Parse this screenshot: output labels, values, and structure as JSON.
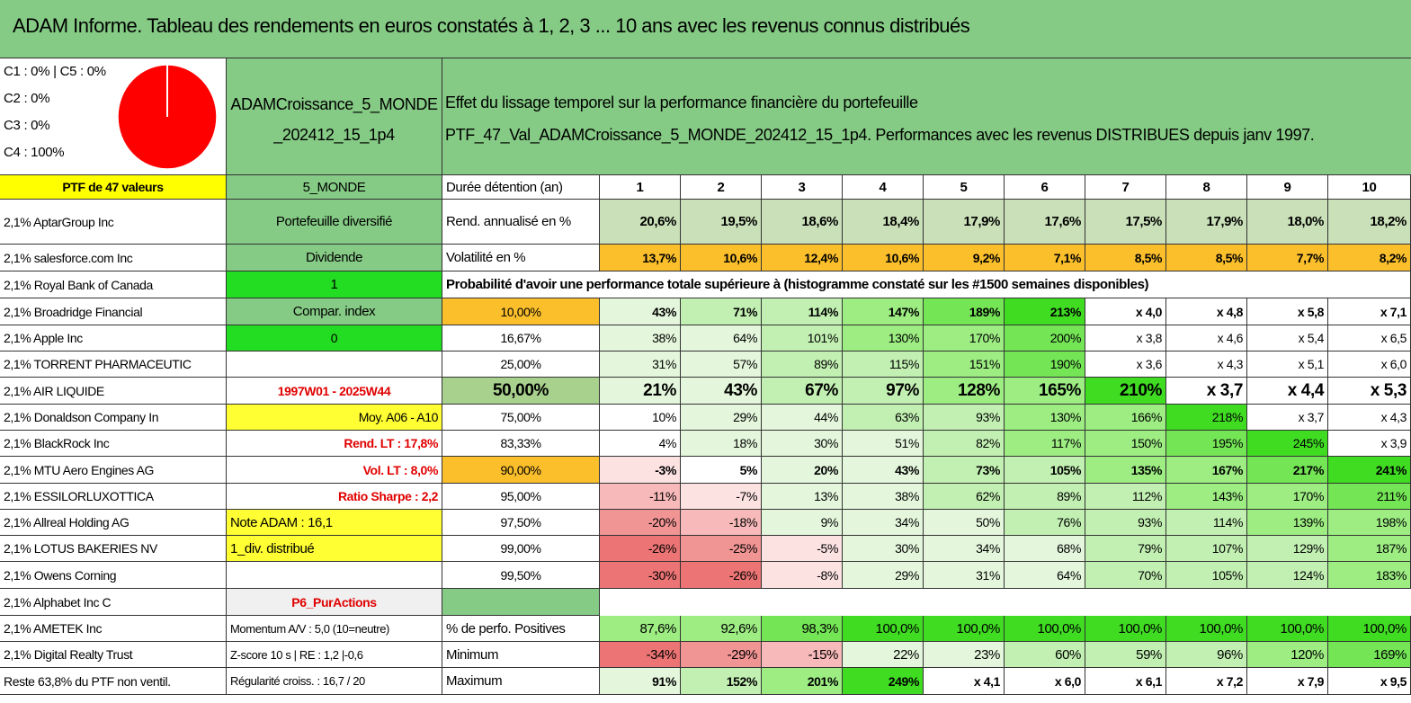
{
  "title": "ADAM Informe. Tableau des rendements en euros constatés à 1, 2, 3 ... 10 ans avec les revenus connus distribués",
  "header": {
    "allocation": [
      "C1 : 0% | C5 : 0%",
      "C2 : 0%",
      "C3 : 0%",
      "C4 : 100%"
    ],
    "portfolio_name": "ADAMCroissance_5_MONDE_202412_15_1p4",
    "description": [
      "Effet du lissage temporel sur la performance financière du portefeuille",
      "PTF_47_Val_ADAMCroissance_5_MONDE_202412_15_1p4. Performances avec les revenus DISTRIBUES depuis janv 1997."
    ]
  },
  "pie": {
    "type": "pie",
    "categories": [
      "C1",
      "C2",
      "C3",
      "C4",
      "C5"
    ],
    "values": [
      0,
      0,
      0,
      100,
      0
    ]
  },
  "table": {
    "rows": [
      [
        "PTF de 47 valeurs",
        "5_MONDE",
        "Durée détention (an)",
        1,
        2,
        3,
        4,
        5,
        6,
        7,
        8,
        9,
        10
      ],
      [
        "2,1% AptarGroup Inc",
        "Portefeuille diversifié",
        "Rend. annualisé en %",
        "20,6%",
        "19,5%",
        "18,6%",
        "18,4%",
        "17,9%",
        "17,6%",
        "17,5%",
        "17,9%",
        "18,0%",
        "18,2%"
      ],
      [
        "2,1% salesforce.com Inc",
        "Dividende",
        "Volatilité en %",
        "13,7%",
        "10,6%",
        "12,4%",
        "10,6%",
        "9,2%",
        "7,1%",
        "8,5%",
        "8,5%",
        "7,7%",
        "8,2%"
      ],
      [
        "2,1% Royal Bank of Canada",
        "1",
        "Probabilité d'avoir une performance totale supérieure à (histogramme constaté sur les #1500 semaines disponibles)"
      ],
      [
        "2,1% Broadridge Financial",
        "Compar. index",
        "10,00%",
        "43%",
        "71%",
        "114%",
        "147%",
        "189%",
        "213%",
        "x 4,0",
        "x 4,8",
        "x 5,8",
        "x 7,1"
      ],
      [
        "2,1% Apple Inc",
        "0",
        "16,67%",
        "38%",
        "64%",
        "101%",
        "130%",
        "170%",
        "200%",
        "x 3,8",
        "x 4,6",
        "x 5,4",
        "x 6,5"
      ],
      [
        "2,1% TORRENT PHARMACEUTIC",
        null,
        "25,00%",
        "31%",
        "57%",
        "89%",
        "115%",
        "151%",
        "190%",
        "x 3,6",
        "x 4,3",
        "x 5,1",
        "x 6,0"
      ],
      [
        "2,1% AIR LIQUIDE",
        "1997W01 - 2025W44",
        "50,00%",
        "21%",
        "43%",
        "67%",
        "97%",
        "128%",
        "165%",
        "210%",
        "x 3,7",
        "x 4,4",
        "x 5,3"
      ],
      [
        "2,1% Donaldson Company In",
        "Moy. A06 - A10",
        "75,00%",
        "10%",
        "29%",
        "44%",
        "63%",
        "93%",
        "130%",
        "166%",
        "218%",
        "x 3,7",
        "x 4,3"
      ],
      [
        "2,1% BlackRock Inc",
        "Rend. LT : 17,8%",
        "83,33%",
        "4%",
        "18%",
        "30%",
        "51%",
        "82%",
        "117%",
        "150%",
        "195%",
        "245%",
        "x 3,9"
      ],
      [
        "2,1% MTU Aero Engines AG",
        "Vol. LT : 8,0%",
        "90,00%",
        "-3%",
        "5%",
        "20%",
        "43%",
        "73%",
        "105%",
        "135%",
        "167%",
        "217%",
        "241%"
      ],
      [
        "2,1% ESSILORLUXOTTICA",
        "Ratio Sharpe : 2,2",
        "95,00%",
        "-11%",
        "-7%",
        "13%",
        "38%",
        "62%",
        "89%",
        "112%",
        "143%",
        "170%",
        "211%"
      ],
      [
        "2,1% Allreal Holding AG",
        "Note ADAM : 16,1",
        "97,50%",
        "-20%",
        "-18%",
        "9%",
        "34%",
        "50%",
        "76%",
        "93%",
        "114%",
        "139%",
        "198%"
      ],
      [
        "2,1% LOTUS BAKERIES NV",
        "1_div. distribué",
        "99,00%",
        "-26%",
        "-25%",
        "-5%",
        "30%",
        "34%",
        "68%",
        "79%",
        "107%",
        "129%",
        "187%"
      ],
      [
        "2,1% Owens Corning",
        null,
        "99,50%",
        "-30%",
        "-26%",
        "-8%",
        "29%",
        "31%",
        "64%",
        "70%",
        "105%",
        "124%",
        "183%"
      ],
      [
        "2,1% Alphabet Inc C",
        "P6_PurActions",
        null
      ],
      [
        "2,1% AMETEK Inc",
        "Momentum A/V : 5,0 (10=neutre)",
        "% de perfo. Positives",
        "87,6%",
        "92,6%",
        "98,3%",
        "100,0%",
        "100,0%",
        "100,0%",
        "100,0%",
        "100,0%",
        "100,0%",
        "100,0%"
      ],
      [
        "2,1% Digital Realty Trust",
        "Z-score 10 s | RE : 1,2 |-0,6",
        "Minimum",
        "-34%",
        "-29%",
        "-15%",
        "22%",
        "23%",
        "60%",
        "59%",
        "96%",
        "120%",
        "169%"
      ],
      [
        "Reste 63,8% du PTF non ventil.",
        "Régularité croiss. : 16,7 / 20",
        "Maximum",
        "91%",
        "152%",
        "201%",
        "249%",
        "x 4,1",
        "x 6,0",
        "x 6,1",
        "x 7,2",
        "x 7,9",
        "x 9,5"
      ]
    ]
  }
}
